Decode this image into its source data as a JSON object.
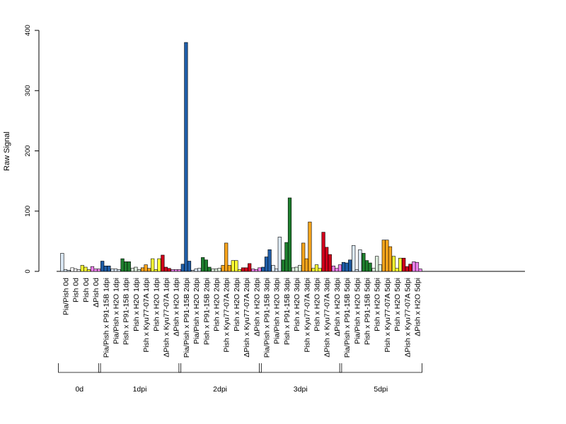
{
  "chart_data": {
    "type": "bar",
    "ylabel": "Raw Signal",
    "xlabel": "",
    "title": "",
    "ylim": [
      0,
      400
    ],
    "yticks": [
      0,
      100,
      200,
      300,
      400
    ],
    "bars_per_category": 3,
    "categories": [
      "Pia/Pish 0d",
      "Pish 0d",
      "Pish 0d",
      "ΔPish 0d",
      "Pia/Pish x P91-15B 1dpi",
      "Pia/Pish x H2O 1dpi",
      "Pish x P91-15B 1dpi",
      "Pish x H2O 1dpi",
      "Pish x Kyu77-07A 1dpi",
      "Pish x H2O 1dpi",
      "ΔPish x Kyu77-07A 1dpi",
      "ΔPish x H2O 1dpi",
      "Pia/Pish x P91-15B 2dpi",
      "Pia/Pish x H2O 2dpi",
      "Pish x P91-15B 2dpi",
      "Pish x H2O 2dpi",
      "Pish x Kyu77-07A 2dpi",
      "Pish x H2O 2dpi",
      "ΔPish x Kyu77-07A 2dpi",
      "ΔPish x H2O 2dpi",
      "Pia/Pish x P91-15B 3dpi",
      "Pia/Pish x H2O 3dpi",
      "Pish x P91-15B 3dpi",
      "Pish x H2O 3dpi",
      "Pish x Kyu77-07A 3dpi",
      "Pish x H2O 3dpi",
      "ΔPish x Kyu77-07A 3dpi",
      "ΔPish x H2O 3dpi",
      "Pia/Pish x P91-15B 5dpi",
      "Pia/Pish x H2O 5dpi",
      "Pish x P91-15B 5dpi",
      "Pish x H2O 5dpi",
      "Pish x Kyu77-07A 5dpi",
      "Pish x H2O 5dpi",
      "ΔPish x Kyu77-07A 5dpi",
      "ΔPish x H2O 5dpi"
    ],
    "values": [
      [
        30,
        3,
        2
      ],
      [
        6,
        4,
        3
      ],
      [
        10,
        7,
        3
      ],
      [
        8,
        4,
        4
      ],
      [
        17,
        9,
        9
      ],
      [
        4,
        4,
        3
      ],
      [
        21,
        16,
        16
      ],
      [
        5,
        7,
        3
      ],
      [
        6,
        11,
        5
      ],
      [
        21,
        3,
        21
      ],
      [
        27,
        7,
        5
      ],
      [
        3,
        3,
        3
      ],
      [
        12,
        380,
        17
      ],
      [
        2,
        4,
        5
      ],
      [
        23,
        19,
        7
      ],
      [
        4,
        4,
        5
      ],
      [
        10,
        47,
        10
      ],
      [
        18,
        18,
        3
      ],
      [
        6,
        6,
        13
      ],
      [
        4,
        3,
        6
      ],
      [
        7,
        24,
        36
      ],
      [
        10,
        4,
        57
      ],
      [
        19,
        48,
        122
      ],
      [
        6,
        7,
        10
      ],
      [
        47,
        21,
        82
      ],
      [
        5,
        11,
        5
      ],
      [
        65,
        40,
        28
      ],
      [
        9,
        5,
        11
      ],
      [
        15,
        14,
        19
      ],
      [
        43,
        3,
        36
      ],
      [
        30,
        18,
        14
      ],
      [
        5,
        25,
        11
      ],
      [
        52,
        52,
        41
      ],
      [
        25,
        5,
        22
      ],
      [
        22,
        8,
        12
      ],
      [
        16,
        15,
        4
      ]
    ],
    "colors": [
      "#dbe9f6",
      "#ffffff",
      "#ffff33",
      "#ee82ee",
      "#1f5ea8",
      "#dbe9f6",
      "#1e7f2e",
      "#ddeedd",
      "#f9a51c",
      "#ffff33",
      "#d0021b",
      "#ee82ee",
      "#1f5ea8",
      "#dbe9f6",
      "#1e7f2e",
      "#ddeedd",
      "#f9a51c",
      "#ffff33",
      "#d0021b",
      "#ee82ee",
      "#1f5ea8",
      "#dbe9f6",
      "#1e7f2e",
      "#ddeedd",
      "#f9a51c",
      "#ffff33",
      "#d0021b",
      "#ee82ee",
      "#1f5ea8",
      "#dbe9f6",
      "#1e7f2e",
      "#ddeedd",
      "#f9a51c",
      "#ffff33",
      "#d0021b",
      "#ee82ee"
    ],
    "groups": [
      {
        "label": "0d",
        "start": 0,
        "end": 3
      },
      {
        "label": "1dpi",
        "start": 4,
        "end": 11
      },
      {
        "label": "2dpi",
        "start": 12,
        "end": 19
      },
      {
        "label": "3dpi",
        "start": 20,
        "end": 27
      },
      {
        "label": "5dpi",
        "start": 28,
        "end": 35
      }
    ],
    "grid": false,
    "legend": "none"
  }
}
